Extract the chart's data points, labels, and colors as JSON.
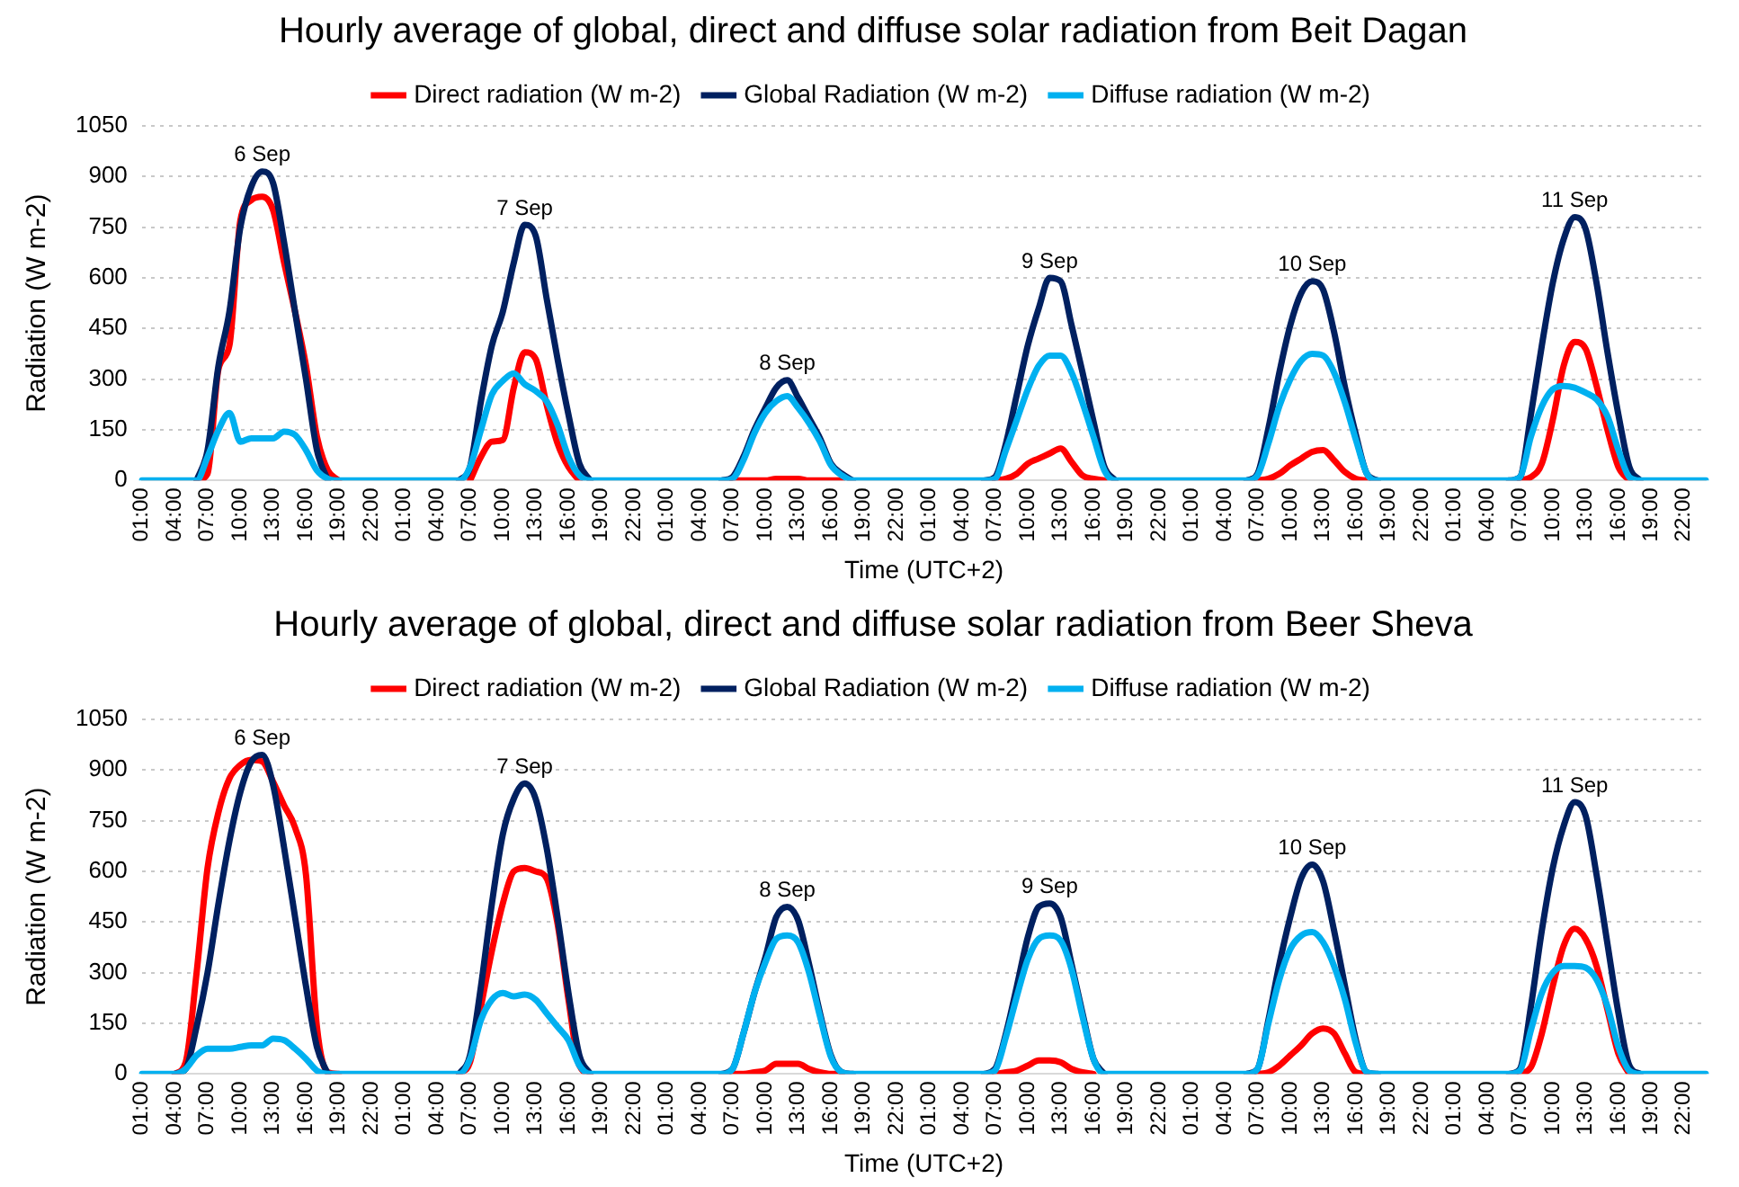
{
  "chart_data": [
    {
      "type": "line",
      "title": "Hourly average of global, direct and diffuse solar radiation from Beit Dagan",
      "xlabel": "Time (UTC+2)",
      "ylabel": "Radiation (W m-2)",
      "ylim": [
        0,
        1050
      ],
      "yticks": [
        0,
        150,
        300,
        450,
        600,
        750,
        900,
        1050
      ],
      "grid": "y",
      "legend": "top",
      "categories": [
        "01:00",
        null,
        null,
        "04:00",
        null,
        null,
        "07:00",
        null,
        null,
        "10:00",
        null,
        null,
        "13:00",
        null,
        null,
        "16:00",
        null,
        null,
        "19:00",
        null,
        null,
        "22:00",
        null,
        null,
        "01:00",
        null,
        null,
        "04:00",
        null,
        null,
        "07:00",
        null,
        null,
        "10:00",
        null,
        null,
        "13:00",
        null,
        null,
        "16:00",
        null,
        null,
        "19:00",
        null,
        null,
        "22:00",
        null,
        null,
        "01:00",
        null,
        null,
        "04:00",
        null,
        null,
        "07:00",
        null,
        null,
        "10:00",
        null,
        null,
        "13:00",
        null,
        null,
        "16:00",
        null,
        null,
        "19:00",
        null,
        null,
        "22:00",
        null,
        null,
        "01:00",
        null,
        null,
        "04:00",
        null,
        null,
        "07:00",
        null,
        null,
        "10:00",
        null,
        null,
        "13:00",
        null,
        null,
        "16:00",
        null,
        null,
        "19:00",
        null,
        null,
        "22:00",
        null,
        null,
        "01:00",
        null,
        null,
        "04:00",
        null,
        null,
        "07:00",
        null,
        null,
        "10:00",
        null,
        null,
        "13:00",
        null,
        null,
        "16:00",
        null,
        null,
        "19:00",
        null,
        null,
        "22:00",
        null,
        null,
        "01:00",
        null,
        null,
        "04:00",
        null,
        null,
        "07:00",
        null,
        null,
        "10:00",
        null,
        null,
        "13:00",
        null,
        null,
        "16:00",
        null,
        null,
        "19:00",
        null,
        null,
        "22:00",
        null,
        null
      ],
      "series": [
        {
          "name": "Direct radiation (W m-2)",
          "color": "#ff0000",
          "values": [
            null,
            null,
            null,
            null,
            null,
            0,
            20,
            330,
            400,
            770,
            830,
            840,
            800,
            645,
            500,
            340,
            130,
            30,
            0,
            null,
            null,
            null,
            null,
            null,
            null,
            null,
            null,
            null,
            null,
            null,
            0,
            70,
            115,
            120,
            275,
            380,
            360,
            225,
            110,
            40,
            0,
            null,
            null,
            null,
            null,
            null,
            null,
            null,
            null,
            null,
            null,
            null,
            null,
            null,
            0,
            0,
            0,
            0,
            5,
            5,
            5,
            0,
            0,
            0,
            0,
            null,
            null,
            null,
            null,
            null,
            null,
            null,
            null,
            null,
            null,
            null,
            null,
            null,
            0,
            5,
            20,
            50,
            65,
            80,
            95,
            55,
            15,
            5,
            0,
            null,
            null,
            null,
            null,
            null,
            null,
            null,
            null,
            null,
            null,
            null,
            null,
            null,
            0,
            5,
            20,
            45,
            65,
            85,
            90,
            60,
            25,
            5,
            0,
            null,
            null,
            null,
            null,
            null,
            null,
            null,
            null,
            null,
            null,
            null,
            null,
            null,
            0,
            10,
            50,
            180,
            340,
            410,
            390,
            280,
            150,
            40,
            0,
            null,
            null,
            null,
            null,
            null,
            null,
            null
          ]
        },
        {
          "name": "Global Radiation (W m-2)",
          "color": "#002060",
          "values": [
            null,
            null,
            null,
            null,
            null,
            0,
            90,
            340,
            500,
            750,
            870,
            915,
            880,
            705,
            500,
            300,
            90,
            0,
            null,
            null,
            null,
            null,
            null,
            null,
            null,
            null,
            null,
            null,
            null,
            0,
            40,
            235,
            400,
            500,
            645,
            757,
            725,
            540,
            360,
            195,
            50,
            0,
            null,
            null,
            null,
            null,
            null,
            null,
            null,
            null,
            null,
            null,
            null,
            0,
            10,
            70,
            150,
            215,
            275,
            297,
            245,
            185,
            125,
            50,
            20,
            0,
            null,
            null,
            null,
            null,
            null,
            null,
            null,
            null,
            null,
            null,
            null,
            0,
            10,
            110,
            255,
            400,
            510,
            600,
            590,
            460,
            320,
            175,
            40,
            0,
            null,
            null,
            null,
            null,
            null,
            null,
            null,
            null,
            null,
            null,
            null,
            0,
            20,
            155,
            320,
            460,
            555,
            590,
            565,
            440,
            275,
            135,
            20,
            0,
            null,
            null,
            null,
            null,
            null,
            null,
            null,
            null,
            null,
            null,
            null,
            0,
            10,
            195,
            400,
            585,
            715,
            780,
            745,
            585,
            380,
            195,
            40,
            0,
            null,
            null,
            null,
            null,
            null,
            null
          ]
        },
        {
          "name": "Diffuse radiation (W m-2)",
          "color": "#00b0f0",
          "values": [
            0,
            0,
            0,
            0,
            0,
            0,
            70,
            150,
            200,
            115,
            125,
            125,
            125,
            145,
            135,
            90,
            30,
            5,
            0,
            0,
            0,
            0,
            0,
            0,
            0,
            0,
            0,
            0,
            0,
            0,
            40,
            150,
            255,
            295,
            317,
            285,
            265,
            235,
            165,
            70,
            15,
            0,
            0,
            0,
            0,
            0,
            0,
            0,
            0,
            0,
            0,
            0,
            0,
            0,
            5,
            60,
            140,
            200,
            235,
            250,
            215,
            170,
            115,
            45,
            15,
            0,
            0,
            0,
            0,
            0,
            0,
            0,
            0,
            0,
            0,
            0,
            0,
            0,
            5,
            90,
            180,
            270,
            340,
            370,
            370,
            320,
            230,
            130,
            30,
            0,
            0,
            0,
            0,
            0,
            0,
            0,
            0,
            0,
            0,
            0,
            0,
            0,
            15,
            110,
            220,
            300,
            355,
            375,
            370,
            320,
            230,
            120,
            20,
            0,
            0,
            0,
            0,
            0,
            0,
            0,
            0,
            0,
            0,
            0,
            0,
            0,
            10,
            130,
            220,
            270,
            280,
            275,
            260,
            240,
            190,
            90,
            10,
            0,
            0,
            0,
            0,
            0,
            0,
            0
          ]
        }
      ],
      "annotations": [
        "6 Sep",
        "7 Sep",
        "8 Sep",
        "9 Sep",
        "10 Sep",
        "11 Sep"
      ]
    },
    {
      "type": "line",
      "title": "Hourly average of global, direct and diffuse solar radiation from Beer Sheva",
      "xlabel": "Time (UTC+2)",
      "ylabel": "Radiation (W m-2)",
      "ylim": [
        0,
        1050
      ],
      "yticks": [
        0,
        150,
        300,
        450,
        600,
        750,
        900,
        1050
      ],
      "grid": "y",
      "legend": "top",
      "categories": [
        "01:00",
        null,
        null,
        "04:00",
        null,
        null,
        "07:00",
        null,
        null,
        "10:00",
        null,
        null,
        "13:00",
        null,
        null,
        "16:00",
        null,
        null,
        "19:00",
        null,
        null,
        "22:00",
        null,
        null,
        "01:00",
        null,
        null,
        "04:00",
        null,
        null,
        "07:00",
        null,
        null,
        "10:00",
        null,
        null,
        "13:00",
        null,
        null,
        "16:00",
        null,
        null,
        "19:00",
        null,
        null,
        "22:00",
        null,
        null,
        "01:00",
        null,
        null,
        "04:00",
        null,
        null,
        "07:00",
        null,
        null,
        "10:00",
        null,
        null,
        "13:00",
        null,
        null,
        "16:00",
        null,
        null,
        "19:00",
        null,
        null,
        "22:00",
        null,
        null,
        "01:00",
        null,
        null,
        "04:00",
        null,
        null,
        "07:00",
        null,
        null,
        "10:00",
        null,
        null,
        "13:00",
        null,
        null,
        "16:00",
        null,
        null,
        "19:00",
        null,
        null,
        "22:00",
        null,
        null,
        "01:00",
        null,
        null,
        "04:00",
        null,
        null,
        "07:00",
        null,
        null,
        "10:00",
        null,
        null,
        "13:00",
        null,
        null,
        "16:00",
        null,
        null,
        "19:00",
        null,
        null,
        "22:00",
        null,
        null,
        "01:00",
        null,
        null,
        "04:00",
        null,
        null,
        "07:00",
        null,
        null,
        "10:00",
        null,
        null,
        "13:00",
        null,
        null,
        "16:00",
        null,
        null,
        "19:00",
        null,
        null,
        "22:00",
        null,
        null
      ],
      "series": [
        {
          "name": "Direct radiation (W m-2)",
          "color": "#ff0000",
          "values": [
            null,
            null,
            null,
            0,
            35,
            300,
            610,
            775,
            875,
            915,
            930,
            925,
            865,
            795,
            730,
            590,
            140,
            5,
            0,
            null,
            null,
            null,
            null,
            null,
            null,
            null,
            null,
            null,
            null,
            0,
            35,
            200,
            365,
            505,
            600,
            610,
            600,
            580,
            445,
            220,
            25,
            0,
            null,
            null,
            null,
            null,
            null,
            null,
            null,
            null,
            null,
            null,
            null,
            null,
            0,
            0,
            5,
            10,
            30,
            30,
            30,
            15,
            5,
            0,
            0,
            null,
            null,
            null,
            null,
            null,
            null,
            null,
            null,
            null,
            null,
            null,
            null,
            null,
            0,
            5,
            10,
            25,
            40,
            40,
            35,
            15,
            5,
            0,
            null,
            null,
            null,
            null,
            null,
            null,
            null,
            null,
            null,
            null,
            null,
            null,
            null,
            null,
            0,
            5,
            25,
            55,
            85,
            120,
            135,
            120,
            60,
            5,
            0,
            null,
            null,
            null,
            null,
            null,
            null,
            null,
            null,
            null,
            null,
            null,
            null,
            null,
            0,
            20,
            120,
            260,
            380,
            430,
            400,
            320,
            190,
            60,
            0,
            null,
            null,
            null,
            null,
            null,
            null,
            null
          ]
        },
        {
          "name": "Global Radiation (W m-2)",
          "color": "#002060",
          "values": [
            null,
            null,
            null,
            0,
            15,
            140,
            300,
            505,
            690,
            835,
            925,
            945,
            855,
            670,
            465,
            260,
            80,
            0,
            null,
            null,
            null,
            null,
            null,
            null,
            null,
            null,
            null,
            null,
            null,
            0,
            55,
            260,
            505,
            710,
            815,
            860,
            815,
            670,
            465,
            240,
            55,
            0,
            null,
            null,
            null,
            null,
            null,
            null,
            null,
            null,
            null,
            null,
            null,
            0,
            15,
            120,
            240,
            345,
            465,
            495,
            455,
            325,
            180,
            55,
            5,
            0,
            null,
            null,
            null,
            null,
            null,
            null,
            null,
            null,
            null,
            null,
            null,
            0,
            15,
            120,
            260,
            405,
            495,
            505,
            465,
            325,
            180,
            45,
            0,
            null,
            null,
            null,
            null,
            null,
            null,
            null,
            null,
            null,
            null,
            null,
            null,
            0,
            15,
            160,
            325,
            465,
            580,
            620,
            570,
            425,
            260,
            100,
            5,
            0,
            null,
            null,
            null,
            null,
            null,
            null,
            null,
            null,
            null,
            null,
            null,
            0,
            15,
            200,
            425,
            610,
            735,
            805,
            765,
            590,
            385,
            180,
            25,
            0,
            null,
            null,
            null,
            null,
            null,
            null
          ]
        },
        {
          "name": "Diffuse radiation (W m-2)",
          "color": "#00b0f0",
          "values": [
            0,
            0,
            0,
            0,
            15,
            55,
            75,
            75,
            75,
            80,
            85,
            85,
            105,
            100,
            75,
            45,
            10,
            0,
            0,
            0,
            0,
            0,
            0,
            0,
            0,
            0,
            0,
            0,
            0,
            0,
            45,
            160,
            220,
            240,
            230,
            235,
            220,
            180,
            140,
            100,
            25,
            0,
            0,
            0,
            0,
            0,
            0,
            0,
            0,
            0,
            0,
            0,
            0,
            0,
            15,
            120,
            240,
            330,
            400,
            410,
            390,
            300,
            170,
            50,
            5,
            0,
            0,
            0,
            0,
            0,
            0,
            0,
            0,
            0,
            0,
            0,
            0,
            0,
            10,
            110,
            230,
            340,
            400,
            410,
            395,
            310,
            170,
            45,
            0,
            0,
            0,
            0,
            0,
            0,
            0,
            0,
            0,
            0,
            0,
            0,
            0,
            0,
            15,
            150,
            280,
            370,
            410,
            420,
            390,
            320,
            220,
            90,
            5,
            0,
            0,
            0,
            0,
            0,
            0,
            0,
            0,
            0,
            0,
            0,
            0,
            0,
            10,
            130,
            240,
            300,
            320,
            320,
            315,
            280,
            200,
            80,
            10,
            0,
            0,
            0,
            0,
            0,
            0,
            0
          ]
        }
      ],
      "annotations": [
        "6 Sep",
        "7 Sep",
        "8 Sep",
        "9 Sep",
        "10 Sep",
        "11 Sep"
      ]
    }
  ]
}
